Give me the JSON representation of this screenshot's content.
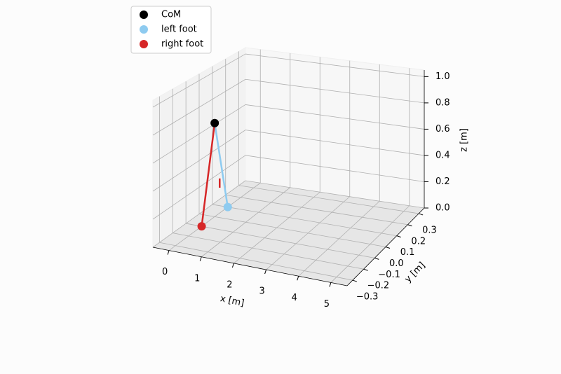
{
  "chart_data": {
    "type": "scatter3d",
    "xlabel": "x [m]",
    "ylabel": "y [m]",
    "zlabel": "z [m]",
    "xlim": [
      -0.5,
      5.5
    ],
    "ylim": [
      -0.35,
      0.35
    ],
    "zlim": [
      0,
      1.05
    ],
    "xticks": [
      0,
      1,
      2,
      3,
      4,
      5
    ],
    "yticks": [
      {
        "value": -0.3,
        "label": "−0.3"
      },
      {
        "value": -0.2,
        "label": "−0.2"
      },
      {
        "value": -0.1,
        "label": "−0.1"
      },
      {
        "value": 0,
        "label": "0.0"
      },
      0.1,
      0.2,
      0.3
    ],
    "zticks": [
      {
        "value": 0,
        "label": "0.0"
      },
      0.2,
      0.4,
      0.6,
      0.8,
      {
        "value": 1,
        "label": "1.0"
      }
    ],
    "series": [
      {
        "name": "CoM",
        "color": "#000000",
        "x": [
          0
        ],
        "y": [
          0
        ],
        "z": [
          0.7
        ]
      },
      {
        "name": "left foot",
        "color": "#8ecbf0",
        "x": [
          0
        ],
        "y": [
          0.1
        ],
        "z": [
          0
        ]
      },
      {
        "name": "right foot",
        "color": "#d62728",
        "x": [
          0
        ],
        "y": [
          -0.1
        ],
        "z": [
          0
        ]
      }
    ],
    "lines": [
      {
        "color": "#8ecbf0",
        "x": [
          0,
          0
        ],
        "y": [
          0.1,
          0
        ],
        "z": [
          0,
          0.7
        ]
      },
      {
        "color": "#d62728",
        "x": [
          0,
          0
        ],
        "y": [
          -0.1,
          0
        ],
        "z": [
          0,
          0.7
        ]
      },
      {
        "color": "#d62728",
        "x": [
          -0.05,
          -0.05
        ],
        "y": [
          0.05,
          0.05
        ],
        "z": [
          0.18,
          0.25
        ]
      }
    ]
  }
}
